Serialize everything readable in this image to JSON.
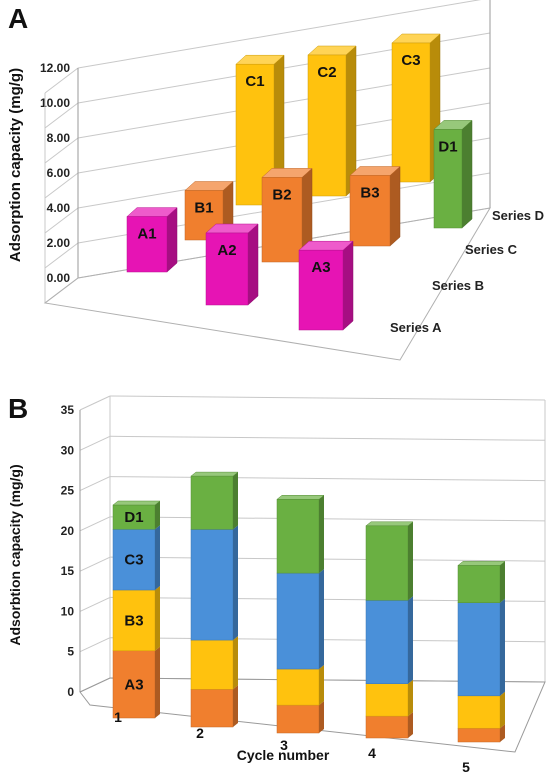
{
  "chart_data": [
    {
      "panel": "A",
      "type": "bar",
      "ylabel": "Adsorption capacity (mg/g)",
      "ylim": [
        0,
        12
      ],
      "yticks": [
        "0.00",
        "2.00",
        "4.00",
        "6.00",
        "8.00",
        "10.00",
        "12.00"
      ],
      "series_labels": [
        "Series A",
        "Series B",
        "Series C",
        "Series D"
      ],
      "bars": [
        {
          "label": "A1",
          "series": "Series A",
          "value": 3.3,
          "color": "#e614b4"
        },
        {
          "label": "A2",
          "series": "Series A",
          "value": 3.6,
          "color": "#e614b4"
        },
        {
          "label": "A3",
          "series": "Series A",
          "value": 3.8,
          "color": "#e614b4"
        },
        {
          "label": "B1",
          "series": "Series B",
          "value": 3.3,
          "color": "#f07f2e"
        },
        {
          "label": "B2",
          "series": "Series B",
          "value": 4.5,
          "color": "#f07f2e"
        },
        {
          "label": "B3",
          "series": "Series B",
          "value": 4.1,
          "color": "#f07f2e"
        },
        {
          "label": "C1",
          "series": "Series C",
          "value": 10.2,
          "color": "#ffc20e"
        },
        {
          "label": "C2",
          "series": "Series C",
          "value": 10.0,
          "color": "#ffc20e"
        },
        {
          "label": "C3",
          "series": "Series C",
          "value": 11.3,
          "color": "#ffc20e"
        },
        {
          "label": "D1",
          "series": "Series D",
          "value": 7.7,
          "color": "#6ab042"
        }
      ]
    },
    {
      "panel": "B",
      "type": "bar",
      "stacked": true,
      "xlabel": "Cycle number",
      "ylabel": "Adsorbtion capacity (mg/g)",
      "ylim": [
        0,
        35
      ],
      "yticks": [
        "0",
        "5",
        "10",
        "15",
        "20",
        "25",
        "30",
        "35"
      ],
      "categories": [
        "1",
        "2",
        "3",
        "4",
        "5"
      ],
      "series": [
        {
          "name": "A3",
          "color": "#f07f2e",
          "values": [
            8.3,
            4.6,
            3.4,
            2.7,
            1.7
          ]
        },
        {
          "name": "B3",
          "color": "#ffc20e",
          "values": [
            7.5,
            6.0,
            4.4,
            4.0,
            4.0
          ]
        },
        {
          "name": "C3",
          "color": "#4a90d9",
          "values": [
            7.5,
            13.5,
            11.7,
            10.3,
            11.5
          ]
        },
        {
          "name": "D1",
          "color": "#6ab042",
          "values": [
            3.0,
            6.5,
            9.0,
            9.2,
            4.6
          ]
        }
      ],
      "segment_labels": {
        "category": "1",
        "labels": [
          "A3",
          "B3",
          "C3",
          "D1"
        ]
      }
    }
  ]
}
